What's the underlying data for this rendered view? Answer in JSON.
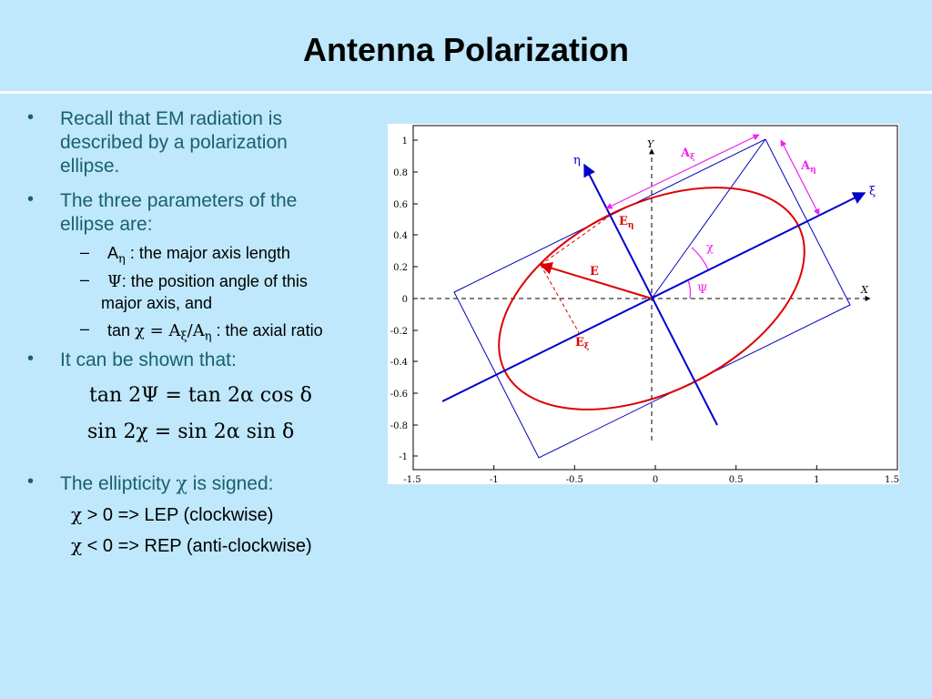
{
  "title": "Antenna Polarization",
  "bullets": {
    "b1": [
      "Recall that EM radiation is",
      "described by a polarization",
      "ellipse."
    ],
    "b2": [
      "The three parameters of the",
      "ellipse are:"
    ],
    "sub1": "A",
    "sub1_subscript": "η",
    "sub1_rest": " : the major axis length",
    "sub2_sym": "Ψ",
    "sub2_rest": ":  the position angle of this",
    "sub2_line2": "major axis, and",
    "sub3_pre": "tan ",
    "sub3_sym": "χ = A",
    "sub3_sub1": "ξ",
    "sub3_mid": "/A",
    "sub3_sub2": "η",
    "sub3_rest": " : the axial ratio",
    "b3": "It can be shown that:",
    "b4_pre": "The ellipticity ",
    "b4_sym": "χ",
    "b4_post": " is signed:",
    "lep_sym": "χ",
    "lep": " > 0 => LEP (clockwise)",
    "rep_sym": "χ",
    "rep": " < 0 => REP (anti-clockwise)"
  },
  "equations": {
    "eq1": "tan 2Ψ = tan 2α cos δ",
    "eq2": "sin 2χ = sin 2α sin δ"
  },
  "figure": {
    "x_ticks": [
      "-1.5",
      "-1",
      "-0.5",
      "0",
      "0.5",
      "1",
      "1.5"
    ],
    "y_ticks": [
      "1",
      "0.8",
      "0.6",
      "0.4",
      "0.2",
      "0",
      "-0.2",
      "-0.4",
      "-0.6",
      "-0.8",
      "-1"
    ],
    "labels": {
      "X": "X",
      "Y": "Y",
      "eta": "η",
      "xi": "ξ",
      "A_xi": "A",
      "A_xi_sub": "ξ",
      "A_eta": "A",
      "A_eta_sub": "η",
      "E": "E",
      "E_eta": "E",
      "E_eta_sub": "η",
      "E_xi": "E",
      "E_xi_sub": "ξ",
      "chi": "χ",
      "psi": "Ψ"
    },
    "colors": {
      "axes": "#0000cc",
      "ellipse": "#dd0000",
      "arrows": "#ee22ee",
      "rect": "#0000bb"
    }
  }
}
